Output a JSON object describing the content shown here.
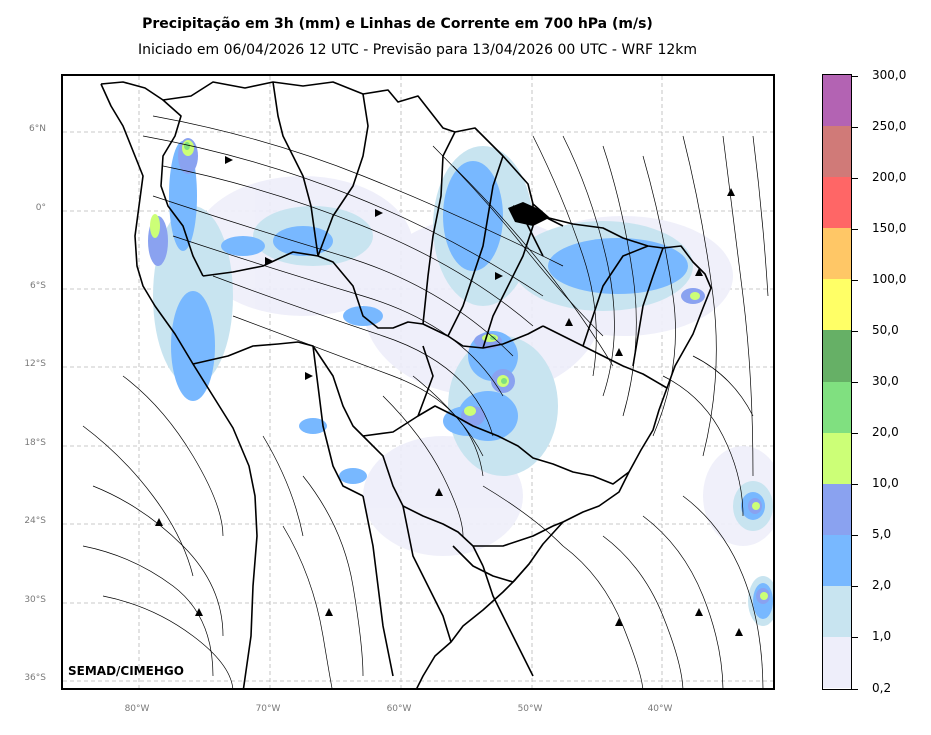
{
  "title": "Precipitação em 3h (mm) e Linhas de Corrente em 700 hPa (m/s)",
  "subtitle": "Iniciado em 06/04/2026 12 UTC - Previsão para 13/04/2026 00 UTC - WRF 12km",
  "credit": "SEMAD/CIMEHGO",
  "lat_ticks": [
    "6°N",
    "0°",
    "6°S",
    "12°S",
    "18°S",
    "24°S",
    "30°S",
    "36°S"
  ],
  "lon_ticks": [
    "80°W",
    "70°W",
    "60°W",
    "50°W",
    "40°W"
  ],
  "colorbar": {
    "labels": [
      "300,0",
      "250,0",
      "200,0",
      "150,0",
      "100,0",
      "50,0",
      "30,0",
      "20,0",
      "10,0",
      "5,0",
      "2,0",
      "1,0",
      "0,2"
    ],
    "colors": [
      "#b363b3",
      "#d07a78",
      "#ff6666",
      "#ffc766",
      "#ffff66",
      "#66b066",
      "#80e080",
      "#ccff77",
      "#8aa2f0",
      "#78b8ff",
      "#c8e4f0",
      "#eeeefa"
    ]
  }
}
